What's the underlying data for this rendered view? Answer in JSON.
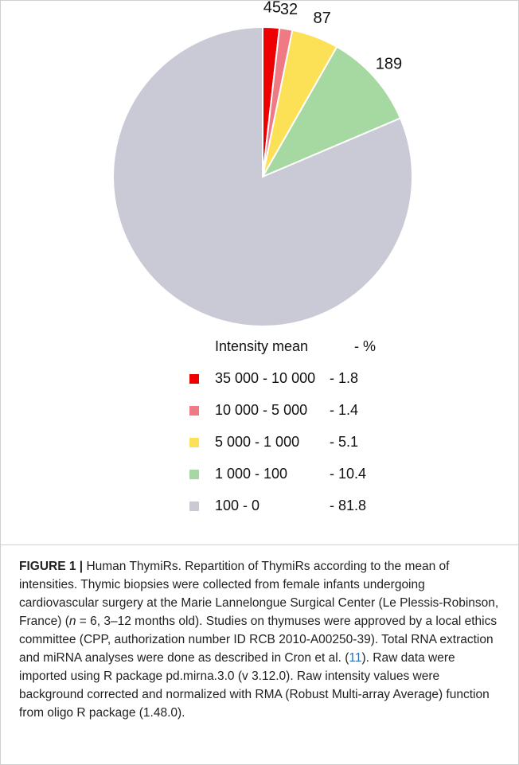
{
  "chart_data": {
    "type": "pie",
    "slices": [
      {
        "count": "45",
        "range": "35 000 - 10 000",
        "percent": "1.8",
        "value": 1.8,
        "color": "#ef0000"
      },
      {
        "count": "32",
        "range": "10 000 - 5 000",
        "percent": "1.4",
        "value": 1.4,
        "color": "#f07a83"
      },
      {
        "count": "87",
        "range": "5 000 - 1 000",
        "percent": "5.1",
        "value": 5.1,
        "color": "#fce157"
      },
      {
        "count": "189",
        "range": "1 000 - 100",
        "percent": "10.4",
        "value": 10.4,
        "color": "#a6d9a1"
      },
      {
        "count": "",
        "range": "100 - 0",
        "percent": "81.8",
        "value": 81.8,
        "color": "#cacad6"
      }
    ],
    "legend_header": {
      "label": "Intensity mean",
      "unit": "- %"
    },
    "legend_placement": "bottom"
  },
  "caption": {
    "figure_label": "FIGURE 1 |",
    "p1": " Human ThymiRs. Repartition of ThymiRs according to the mean of intensities. Thymic biopsies were collected from female infants undergoing cardiovascular surgery at the Marie Lannelongue Surgical Center (Le Plessis-Robinson, France) (",
    "n_var": "n",
    "p2": " = 6, 3–12 months old). Studies on thymuses were approved by a local ethics committee (CPP, authorization number ID RCB 2010-A00250-39). Total RNA extraction and miRNA analyses were done as described in Cron et al. (",
    "ref": "11",
    "p3": "). Raw data were imported using R package pd.mirna.3.0 (v 3.12.0). Raw intensity values were background corrected and normalized with RMA (Robust Multi-array Average) function from oligo R package (1.48.0)."
  }
}
